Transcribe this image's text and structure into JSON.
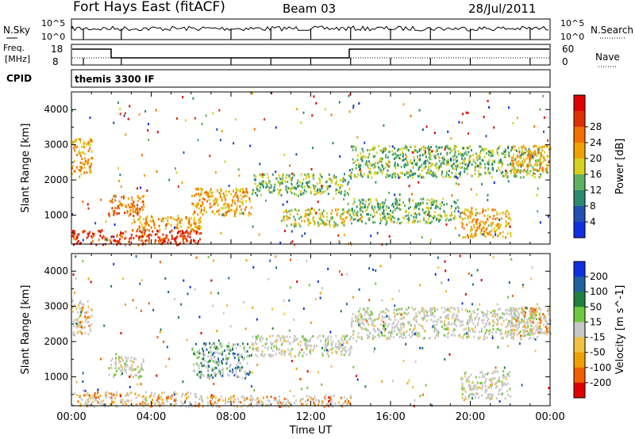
{
  "header": {
    "station": "Fort Hays East (fitACF)",
    "beam": "Beam 03",
    "date": "28/Jul/2011"
  },
  "strip_labels": {
    "nsky": "N.Sky",
    "nsky_top": "10^5",
    "nsky_bottom": "10^0",
    "nsearch": "N.Search",
    "nsearch_top": "10^5",
    "nsearch_bottom": "10^0",
    "freq": "Freq.",
    "freq_unit": "[MHz]",
    "freq_top": "18",
    "freq_bottom": "8",
    "nave": "Nave",
    "nave_top": "60",
    "nave_bottom": "0",
    "cpid": "CPID",
    "cpid_value": "themis 3300 IF"
  },
  "chart_data": [
    {
      "type": "heatmap",
      "name": "power",
      "xlabel": "Time UT",
      "ylabel": "Slant Range [km]",
      "x_ticks": [
        "00:00",
        "04:00",
        "08:00",
        "12:00",
        "16:00",
        "20:00",
        "00:00"
      ],
      "y_ticks": [
        1000,
        2000,
        3000,
        4000
      ],
      "ylim": [
        180,
        4500
      ],
      "colorbar_label": "Power [dB]",
      "colorbar_ticks": [
        4,
        8,
        12,
        16,
        20,
        24,
        28
      ],
      "colorbar_colors": [
        "#1030e0",
        "#2050b0",
        "#2a8a70",
        "#60b060",
        "#d8d020",
        "#f0a000",
        "#f07000",
        "#e03000",
        "#e00000"
      ],
      "regions": [
        {
          "t0": 0.0,
          "t1": 1.0,
          "r0": 2200,
          "r1": 3200,
          "level": 20
        },
        {
          "t0": 1.8,
          "t1": 3.6,
          "r0": 1000,
          "r1": 1600,
          "level": 22
        },
        {
          "t0": 0.0,
          "t1": 6.5,
          "r0": 180,
          "r1": 600,
          "level": 26
        },
        {
          "t0": 3.0,
          "t1": 6.5,
          "r0": 600,
          "r1": 1000,
          "level": 18
        },
        {
          "t0": 6.0,
          "t1": 9.0,
          "r0": 1000,
          "r1": 1800,
          "level": 18
        },
        {
          "t0": 9.0,
          "t1": 14.0,
          "r0": 1600,
          "r1": 2200,
          "level": 12
        },
        {
          "t0": 10.5,
          "t1": 14.0,
          "r0": 700,
          "r1": 1200,
          "level": 14
        },
        {
          "t0": 14.0,
          "t1": 23.5,
          "r0": 2100,
          "r1": 3000,
          "level": 10
        },
        {
          "t0": 14.0,
          "t1": 19.5,
          "r0": 800,
          "r1": 1500,
          "level": 12
        },
        {
          "t0": 19.5,
          "t1": 22.0,
          "r0": 400,
          "r1": 1200,
          "level": 20
        },
        {
          "t0": 22.0,
          "t1": 24.0,
          "r0": 2200,
          "r1": 3000,
          "level": 18
        }
      ]
    },
    {
      "type": "heatmap",
      "name": "velocity",
      "xlabel": "Time UT",
      "ylabel": "Slant Range [km]",
      "x_ticks": [
        "00:00",
        "04:00",
        "08:00",
        "12:00",
        "16:00",
        "20:00",
        "00:00"
      ],
      "y_ticks": [
        1000,
        2000,
        3000,
        4000
      ],
      "ylim": [
        180,
        4500
      ],
      "colorbar_label": "Velocity [m s^-1]",
      "colorbar_ticks": [
        "200",
        "100",
        "50",
        "15",
        "-15",
        "-50",
        "-100",
        "-200"
      ],
      "colorbar_colors": [
        "#1030e0",
        "#2060a0",
        "#208040",
        "#70c840",
        "#c8c8c8",
        "#f0c040",
        "#f0a000",
        "#f06000",
        "#e00000"
      ],
      "regions": [
        {
          "t0": 0.0,
          "t1": 1.0,
          "r0": 2200,
          "r1": 3200,
          "level": -40
        },
        {
          "t0": 1.8,
          "t1": 3.6,
          "r0": 1000,
          "r1": 1600,
          "level": 0
        },
        {
          "t0": 0.0,
          "t1": 6.5,
          "r0": 180,
          "r1": 600,
          "level": -60
        },
        {
          "t0": 6.0,
          "t1": 9.0,
          "r0": 1000,
          "r1": 2000,
          "level": 40
        },
        {
          "t0": 9.0,
          "t1": 14.0,
          "r0": 1600,
          "r1": 2200,
          "level": 0
        },
        {
          "t0": 14.0,
          "t1": 23.5,
          "r0": 2100,
          "r1": 3000,
          "level": 0
        },
        {
          "t0": 19.5,
          "t1": 22.0,
          "r0": 400,
          "r1": 1200,
          "level": 0
        },
        {
          "t0": 22.0,
          "t1": 24.0,
          "r0": 2200,
          "r1": 3000,
          "level": -30
        },
        {
          "t0": 6.5,
          "t1": 14.0,
          "r0": 180,
          "r1": 500,
          "level": -50
        }
      ]
    }
  ]
}
